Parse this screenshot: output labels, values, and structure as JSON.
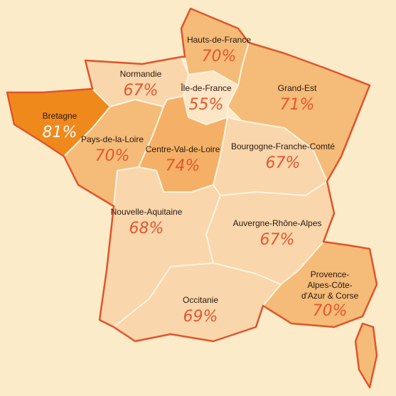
{
  "regions": [
    {
      "name": "Hauts-de-France",
      "value_label": "70%",
      "color": "#f5bb78"
    },
    {
      "name": "Normandie",
      "value_label": "67%",
      "color": "#f9d6ab"
    },
    {
      "name": "Île-de-France",
      "value_label": "55%",
      "color": "#fde6c6"
    },
    {
      "name": "Grand-Est",
      "value_label": "71%",
      "color": "#f5bb78"
    },
    {
      "name": "Bretagne",
      "value_label": "81%",
      "color": "#f0891c"
    },
    {
      "name": "Pays-de-la-Loire",
      "value_label": "70%",
      "color": "#f5bb78"
    },
    {
      "name": "Centre-Val-de-Loire",
      "value_label": "74%",
      "color": "#f4b066"
    },
    {
      "name": "Bourgogne-Franche-Comté",
      "value_label": "67%",
      "color": "#f9d6ab"
    },
    {
      "name": "Nouvelle-Aquitaine",
      "value_label": "68%",
      "color": "#f9d6ab"
    },
    {
      "name": "Auvergne-Rhône-Alpes",
      "value_label": "67%",
      "color": "#f9d6ab"
    },
    {
      "name": "Provence-Alpes-Côte-d'Azur & Corse",
      "value_label": "70%",
      "color": "#f5bb78"
    },
    {
      "name": "Occitanie",
      "value_label": "69%",
      "color": "#f9d6ab"
    }
  ]
}
